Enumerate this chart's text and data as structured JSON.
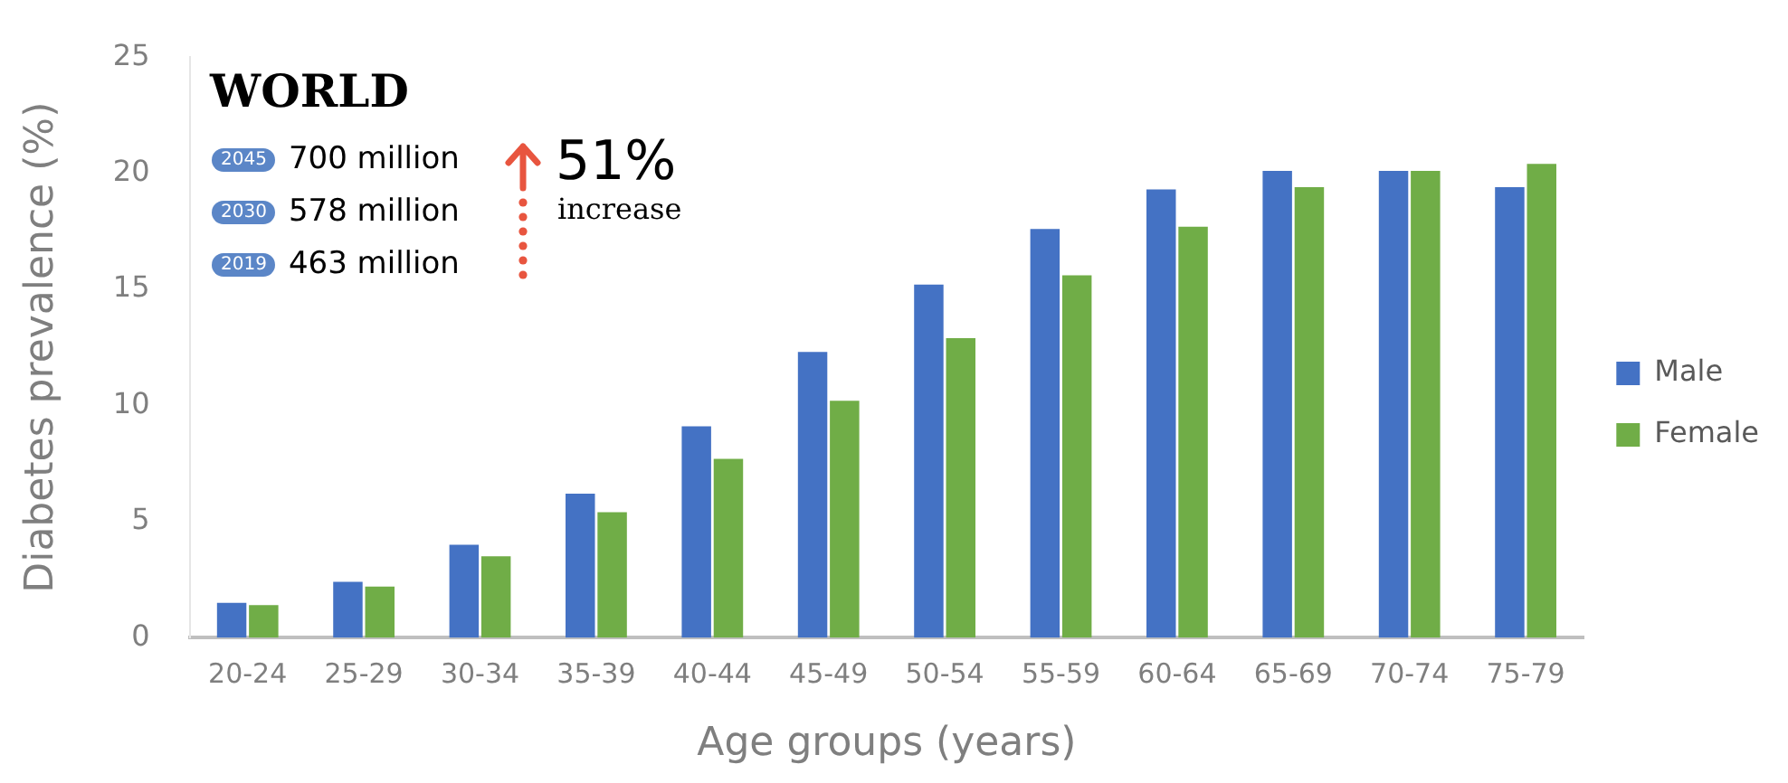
{
  "chart_data": {
    "type": "bar",
    "xlabel": "Age groups (years)",
    "ylabel": "Diabetes prevalence (%)",
    "categories": [
      "20-24",
      "25-29",
      "30-34",
      "35-39",
      "40-44",
      "45-49",
      "50-54",
      "55-59",
      "60-64",
      "65-69",
      "70-74",
      "75-79"
    ],
    "series": [
      {
        "name": "Male",
        "color": "#4472c4",
        "values": [
          1.5,
          2.4,
          4.0,
          6.2,
          9.1,
          12.3,
          15.2,
          17.6,
          19.3,
          20.1,
          20.1,
          19.4
        ]
      },
      {
        "name": "Female",
        "color": "#70ad47",
        "values": [
          1.4,
          2.2,
          3.5,
          5.4,
          7.7,
          10.2,
          12.9,
          15.6,
          17.7,
          19.4,
          20.1,
          20.4
        ]
      }
    ],
    "ylim": [
      0,
      25
    ],
    "yticks": [
      0,
      5,
      10,
      15,
      20,
      25
    ],
    "grid": false,
    "legend": "right",
    "annotations": [
      "WORLD",
      "2045",
      "700 million",
      "2030",
      "578 million",
      "2019",
      "463 million",
      "51%",
      "increase"
    ]
  }
}
